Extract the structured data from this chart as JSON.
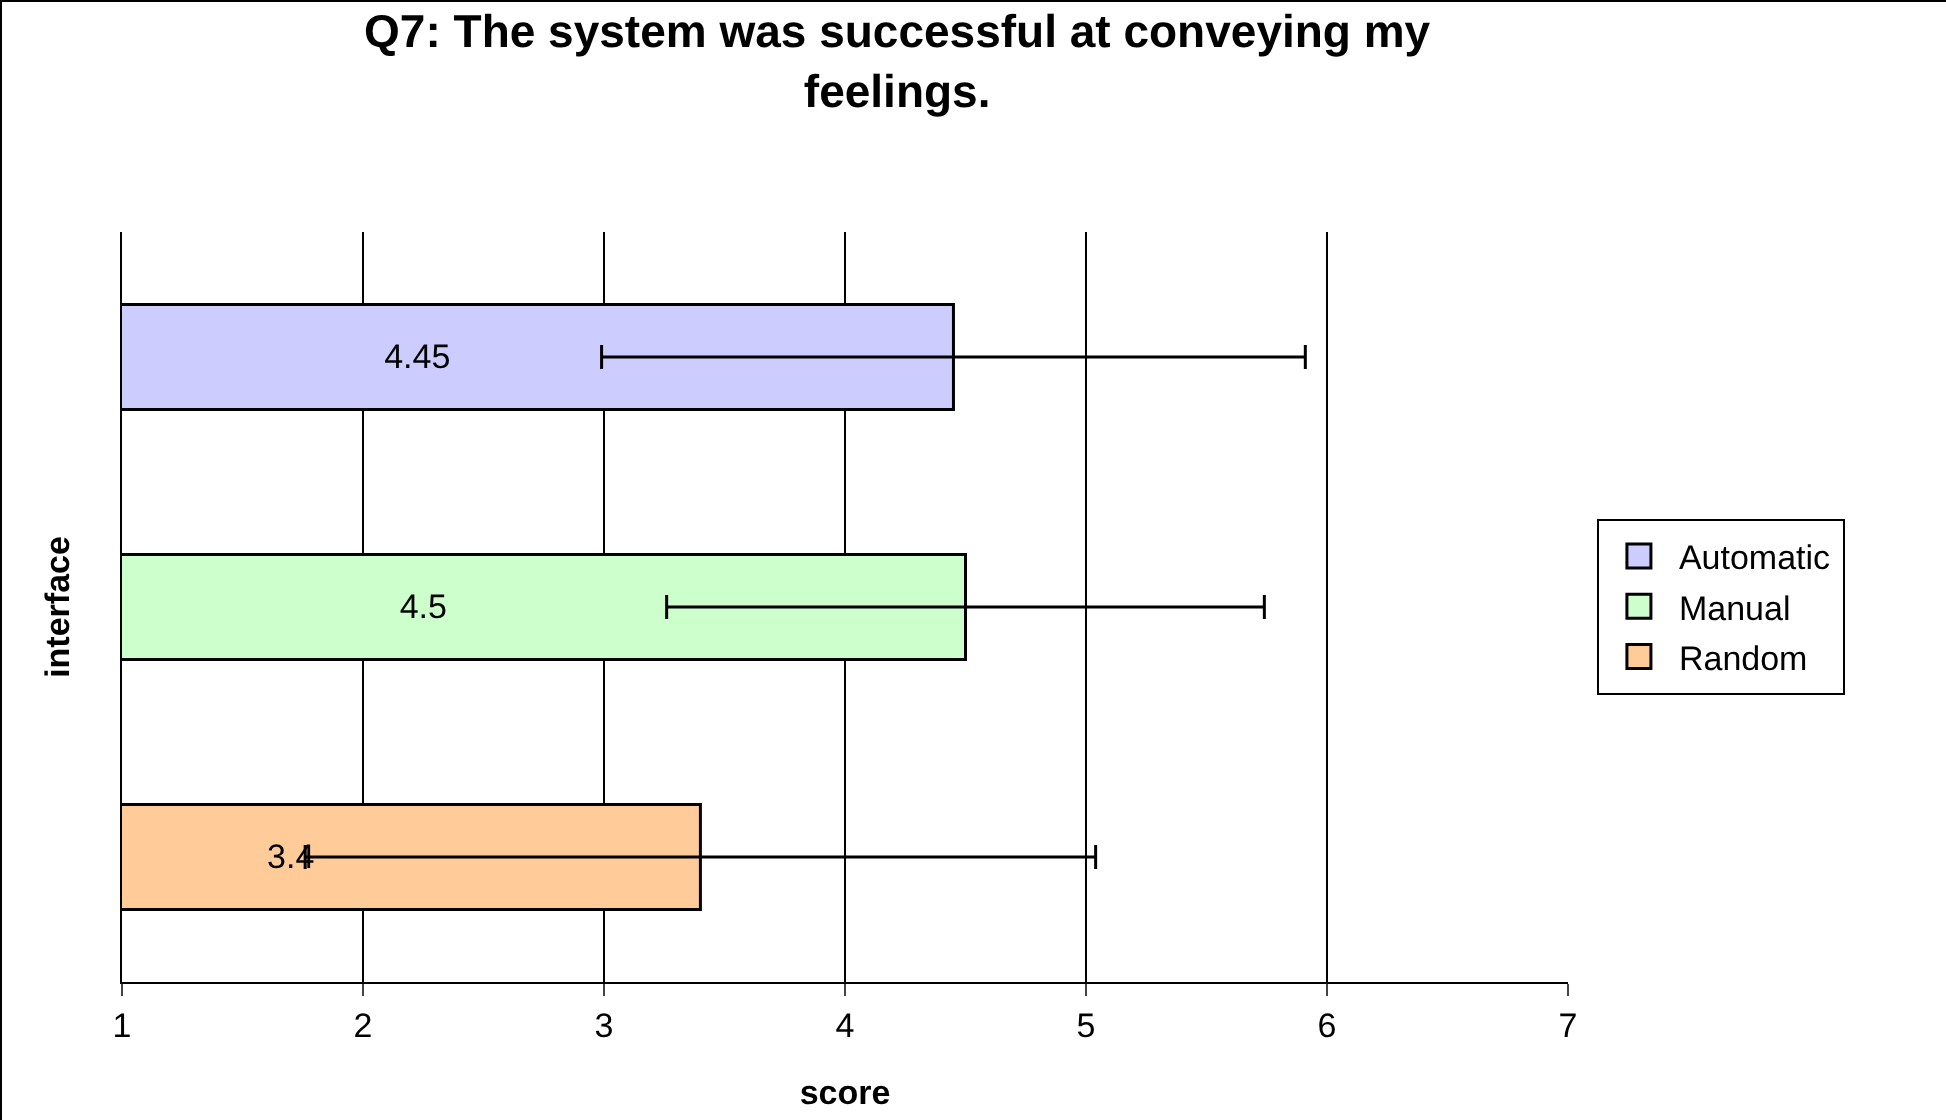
{
  "chart_data": {
    "type": "bar",
    "orientation": "horizontal",
    "title": "Q7: The system was successful at conveying my feelings.",
    "xlabel": "score",
    "ylabel": "interface",
    "categories": [
      null,
      null,
      null
    ],
    "series": [
      {
        "name": "Automatic",
        "color": "#ccccff",
        "values": [
          4.45,
          null,
          null
        ],
        "errors": [
          1.46,
          null,
          null
        ]
      },
      {
        "name": "Manual",
        "color": "#ccffcc",
        "values": [
          null,
          4.5,
          null
        ],
        "errors": [
          null,
          1.24,
          null
        ]
      },
      {
        "name": "Random",
        "color": "#ffcc99",
        "values": [
          null,
          null,
          3.4
        ],
        "errors": [
          null,
          null,
          1.64
        ]
      }
    ],
    "xlim": [
      1,
      7
    ],
    "xticks": [
      1,
      2,
      3,
      4,
      5,
      6,
      7
    ],
    "grid": "x",
    "legend": "right",
    "data_labels": true,
    "tick_labels": "x"
  }
}
